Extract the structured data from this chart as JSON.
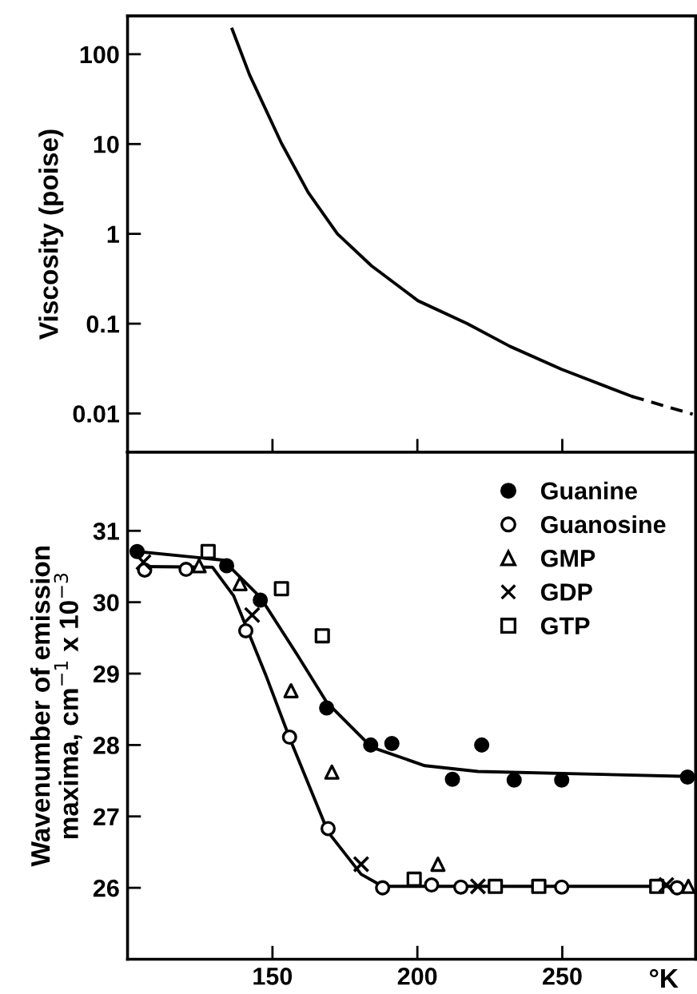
{
  "chart_data": [
    {
      "type": "line",
      "ylabel": "Viscosity (poise)",
      "log": "y",
      "xlim": [
        100,
        296
      ],
      "ylim": [
        0.0037,
        267
      ],
      "xticks": [
        150,
        200,
        250
      ],
      "yticks": [
        0.01,
        0.1,
        1,
        10,
        100
      ],
      "tick_labels": "y",
      "grid": false,
      "legend": false,
      "series": [
        {
          "color": "#000000",
          "line_style": "solid",
          "x": [
            136.1,
            142.1,
            153.1,
            162.3,
            172.4,
            184.2,
            200.2,
            217.2,
            231.9,
            249.8,
            274.0
          ],
          "values": [
            190,
            59,
            10.2,
            2.9,
            1.0,
            0.44,
            0.18,
            0.1,
            0.056,
            0.031,
            0.0155
          ]
        },
        {
          "color": "#000000",
          "line_style": "dashed",
          "x": [
            274.0,
            295.0
          ],
          "values": [
            0.0155,
            0.0098
          ]
        }
      ]
    },
    {
      "type": "scatter",
      "ylabel": "Wavenumber of emission\nmaxima, cm$^{−1}$ x 10$^{−3}$",
      "xlabel": "°K",
      "xlim": [
        100,
        296
      ],
      "ylim": [
        25,
        32.1
      ],
      "xticks": [
        150,
        200,
        250
      ],
      "yticks": [
        26,
        27,
        28,
        29,
        30,
        31
      ],
      "grid": false,
      "legend": "top right",
      "series": [
        {
          "name": "Guanine",
          "color": "#000000",
          "marker": "circle",
          "x": [
            103.3,
            134.2,
            145.8,
            168.7,
            183.9,
            191.2,
            212.1,
            222.2,
            233.4,
            249.8,
            293.2
          ],
          "values": [
            30.71,
            30.51,
            30.03,
            28.52,
            28.0,
            28.02,
            27.52,
            28.0,
            27.51,
            27.51,
            27.55
          ]
        },
        {
          "name": "Guanosine",
          "color": "#000000",
          "marker": "circle",
          "x": [
            105.9,
            120.2,
            140.8,
            155.9,
            169.2,
            188.0,
            204.9,
            215.0,
            249.8,
            289.6
          ],
          "values": [
            30.45,
            30.46,
            29.6,
            28.11,
            26.83,
            26.0,
            26.04,
            26.01,
            26.01,
            26.0
          ]
        },
        {
          "name": "GMP",
          "color": "#000000",
          "marker": "triangle",
          "x": [
            124.7,
            138.8,
            156.4,
            170.5,
            207.1,
            293.5
          ],
          "values": [
            30.51,
            30.26,
            28.76,
            27.62,
            26.33,
            26.02
          ]
        },
        {
          "name": "GDP",
          "color": "#000000",
          "marker": "cross",
          "x": [
            105.5,
            143.0,
            180.6,
            220.9,
            285.9
          ],
          "values": [
            30.56,
            29.82,
            26.33,
            26.02,
            26.04
          ]
        },
        {
          "name": "GTP",
          "color": "#000000",
          "marker": "square",
          "x": [
            127.8,
            153.1,
            167.2,
            198.9,
            226.9,
            241.9,
            282.6
          ],
          "values": [
            30.71,
            30.19,
            29.53,
            26.12,
            26.02,
            26.02,
            26.02
          ]
        },
        {
          "type": "line",
          "color": "#000000",
          "line_style": "solid",
          "x": [
            103.3,
            132.9,
            145.8,
            158.6,
            168.7,
            184.2,
            202.6,
            220.9,
            293.2
          ],
          "values": [
            30.71,
            30.59,
            30.07,
            29.26,
            28.6,
            27.97,
            27.71,
            27.63,
            27.56
          ]
        },
        {
          "type": "line",
          "color": "#000000",
          "line_style": "solid",
          "x": [
            104.6,
            129.3,
            136.6,
            147.6,
            155.9,
            169.2,
            180.6,
            188.0,
            293.2
          ],
          "values": [
            30.5,
            30.49,
            30.09,
            28.99,
            28.1,
            26.78,
            26.19,
            26.02,
            26.02
          ]
        }
      ]
    }
  ]
}
